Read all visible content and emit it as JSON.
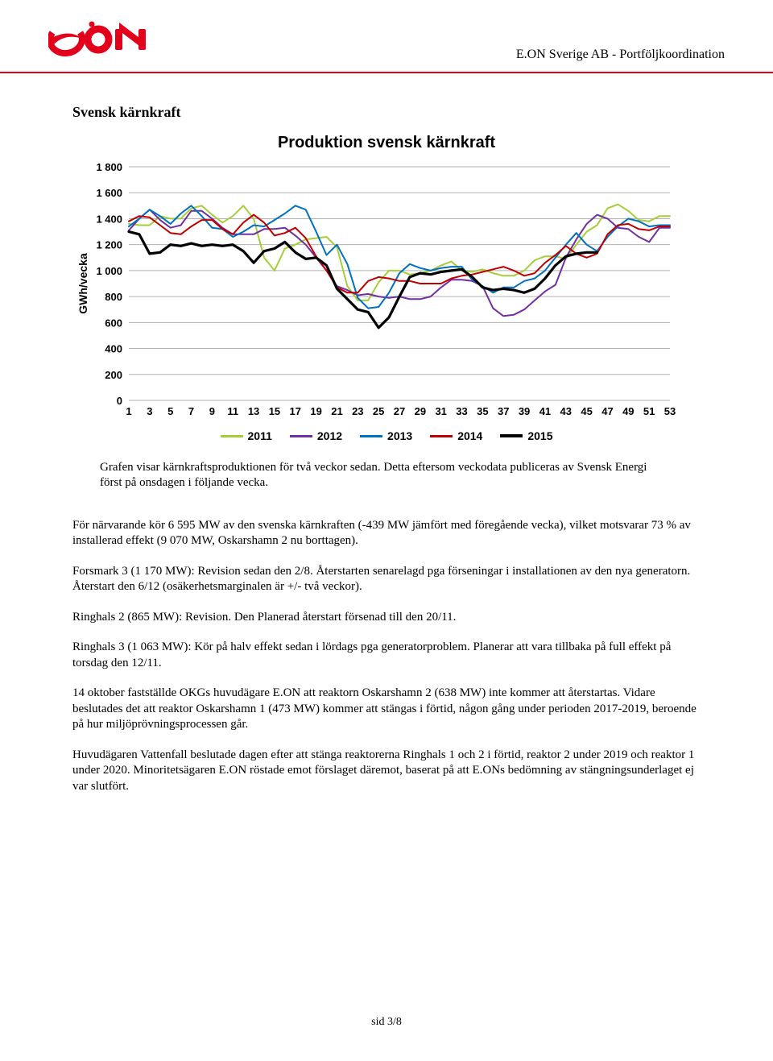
{
  "header": {
    "company": "E.ON Sverige AB - Portföljkoordination",
    "logo_color": "#e2001a",
    "rule_color": "#e2001a"
  },
  "section_title": "Svensk kärnkraft",
  "chart": {
    "type": "line",
    "title": "Produktion svensk kärnkraft",
    "y_label": "GWh/vecka",
    "ylim": [
      0,
      1800
    ],
    "ytick_step": 200,
    "x_label_spacing": 2,
    "x_count": 53,
    "x_ticks": [
      1,
      3,
      5,
      7,
      9,
      11,
      13,
      15,
      17,
      19,
      21,
      23,
      25,
      27,
      29,
      31,
      33,
      35,
      37,
      39,
      41,
      43,
      45,
      47,
      49,
      51,
      53
    ],
    "series": [
      {
        "name": "2011",
        "color": "#a6ce39",
        "width": 2,
        "values": [
          1360,
          1350,
          1350,
          1420,
          1400,
          1400,
          1480,
          1500,
          1430,
          1370,
          1420,
          1500,
          1400,
          1100,
          1000,
          1170,
          1200,
          1240,
          1250,
          1260,
          1180,
          880,
          770,
          770,
          910,
          1000,
          1000,
          970,
          980,
          1000,
          1040,
          1070,
          1000,
          990,
          1010,
          980,
          960,
          960,
          1000,
          1080,
          1110,
          1110,
          1090,
          1200,
          1300,
          1350,
          1480,
          1510,
          1460,
          1390,
          1380,
          1420,
          1420
        ]
      },
      {
        "name": "2012",
        "color": "#7030a0",
        "width": 2,
        "values": [
          1310,
          1400,
          1470,
          1390,
          1330,
          1350,
          1460,
          1460,
          1400,
          1330,
          1280,
          1280,
          1280,
          1320,
          1320,
          1330,
          1270,
          1200,
          1100,
          1000,
          880,
          850,
          810,
          820,
          800,
          790,
          800,
          780,
          780,
          800,
          870,
          930,
          930,
          920,
          880,
          710,
          650,
          660,
          700,
          770,
          840,
          890,
          1100,
          1240,
          1360,
          1430,
          1400,
          1330,
          1320,
          1260,
          1220,
          1330,
          1330
        ]
      },
      {
        "name": "2013",
        "color": "#0070c0",
        "width": 2,
        "values": [
          1340,
          1400,
          1470,
          1420,
          1360,
          1440,
          1500,
          1420,
          1330,
          1320,
          1260,
          1300,
          1350,
          1340,
          1390,
          1440,
          1500,
          1470,
          1300,
          1120,
          1200,
          1050,
          790,
          710,
          720,
          830,
          980,
          1050,
          1020,
          1000,
          1020,
          1030,
          1030,
          930,
          880,
          830,
          870,
          870,
          920,
          940,
          1000,
          1100,
          1200,
          1290,
          1200,
          1150,
          1260,
          1340,
          1400,
          1380,
          1340,
          1350,
          1350
        ]
      },
      {
        "name": "2014",
        "color": "#c00000",
        "width": 2,
        "values": [
          1380,
          1420,
          1410,
          1350,
          1290,
          1280,
          1340,
          1390,
          1390,
          1320,
          1280,
          1370,
          1430,
          1370,
          1270,
          1290,
          1330,
          1250,
          1110,
          1000,
          870,
          830,
          830,
          920,
          950,
          940,
          920,
          920,
          900,
          900,
          900,
          940,
          960,
          970,
          990,
          1010,
          1030,
          1000,
          960,
          980,
          1060,
          1120,
          1190,
          1130,
          1100,
          1130,
          1280,
          1350,
          1360,
          1320,
          1310,
          1340,
          1340
        ]
      },
      {
        "name": "2015",
        "color": "#000000",
        "width": 3.2,
        "values": [
          1300,
          1280,
          1130,
          1140,
          1200,
          1190,
          1210,
          1190,
          1200,
          1190,
          1200,
          1150,
          1060,
          1150,
          1170,
          1220,
          1140,
          1090,
          1100,
          1040,
          860,
          780,
          700,
          680,
          560,
          640,
          800,
          950,
          980,
          970,
          990,
          1000,
          1010,
          950,
          870,
          850,
          860,
          850,
          830,
          860,
          940,
          1040,
          1110,
          1130,
          1140,
          1140
        ]
      }
    ],
    "background_color": "#ffffff",
    "grid_color": "#808080",
    "legend": [
      "2011",
      "2012",
      "2013",
      "2014",
      "2015"
    ]
  },
  "caption": "Grafen visar kärnkraftsproduktionen för två veckor sedan. Detta eftersom veckodata publiceras av Svensk Energi först på onsdagen i följande vecka.",
  "paragraphs": [
    "För närvarande kör 6 595 MW av den svenska kärnkraften (-439 MW jämfört med föregående vecka), vilket motsvarar 73 % av installerad effekt (9 070 MW, Oskarshamn 2 nu borttagen).",
    "Forsmark 3 (1 170 MW): Revision sedan den 2/8. Återstarten senarelagd pga förseningar i installationen av den nya generatorn. Återstart den 6/12 (osäkerhetsmarginalen är +/- två veckor).",
    "Ringhals 2 (865 MW): Revision. Den Planerad återstart försenad till den 20/11.",
    "Ringhals 3 (1 063 MW): Kör på halv effekt sedan i lördags pga generatorproblem. Planerar att vara tillbaka på full effekt på torsdag den 12/11.",
    "14 oktober fastställde OKGs huvudägare E.ON att reaktorn Oskarshamn 2 (638 MW) inte kommer att återstartas. Vidare beslutades det att reaktor Oskarshamn 1 (473 MW) kommer att stängas i förtid, någon gång under perioden 2017-2019, beroende på hur miljöprövningsprocessen går.",
    "Huvudägaren Vattenfall beslutade dagen efter att stänga reaktorerna Ringhals 1 och 2 i förtid, reaktor 2 under 2019 och reaktor 1 under 2020. Minoritetsägaren E.ON röstade emot förslaget däremot, baserat på att E.ONs bedömning av stängningsunderlaget ej var slutfört."
  ],
  "footer": "sid 3/8"
}
